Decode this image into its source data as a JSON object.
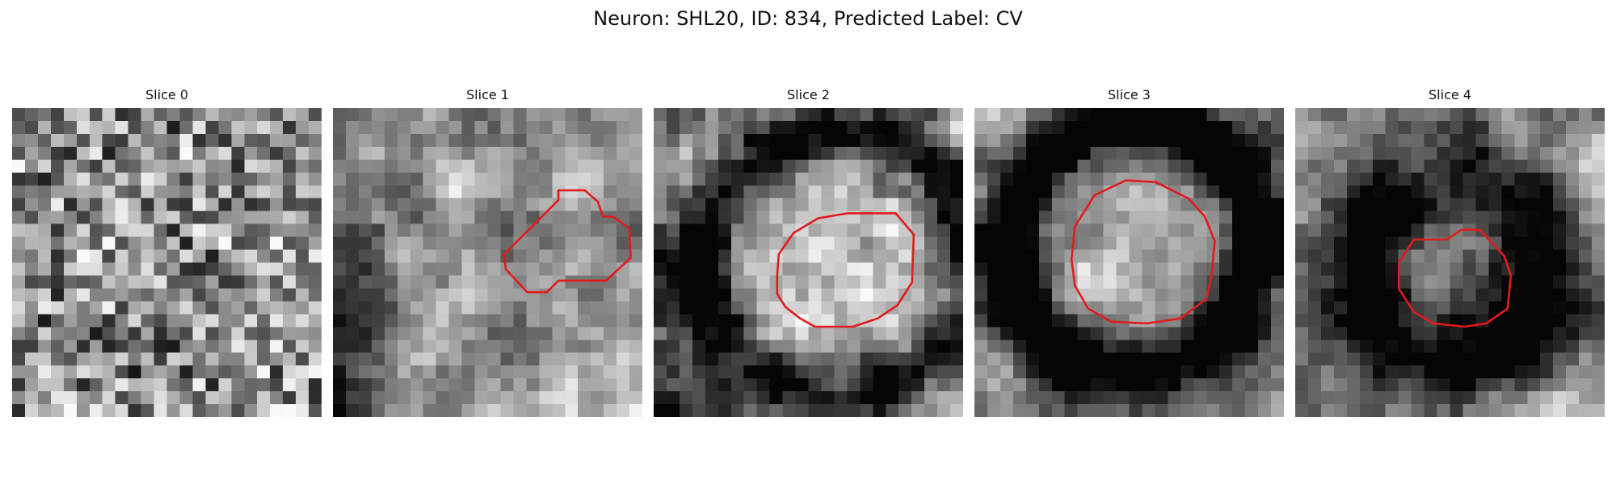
{
  "figure": {
    "title": "Neuron: SHL20, ID: 834, Predicted Label: CV"
  },
  "slices": [
    {
      "label": "Slice 0",
      "has_outline": false
    },
    {
      "label": "Slice 1",
      "has_outline": true
    },
    {
      "label": "Slice 2",
      "has_outline": true
    },
    {
      "label": "Slice 3",
      "has_outline": true
    },
    {
      "label": "Slice 4",
      "has_outline": true
    }
  ],
  "colors": {
    "background": "#ffffff",
    "outline": "#e31a1c",
    "colormap": "grayscale"
  }
}
